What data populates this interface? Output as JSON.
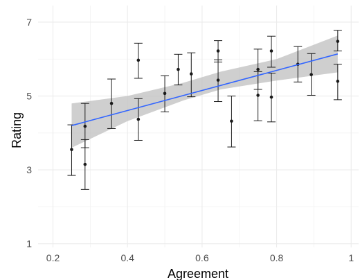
{
  "chart_data": {
    "type": "scatter",
    "title": "",
    "xlabel": "Agreement",
    "ylabel": "Rating",
    "xlim": [
      0.16,
      1.02
    ],
    "ylim": [
      0.9,
      7.45
    ],
    "x_ticks": [
      0.2,
      0.4,
      0.6,
      0.8,
      1.0
    ],
    "x_tick_labels": [
      "0.2",
      "0.4",
      "0.6",
      "0.8",
      "1"
    ],
    "y_ticks": [
      1,
      3,
      5,
      7
    ],
    "y_tick_labels": [
      "1",
      "3",
      "5",
      "7"
    ],
    "grid": true,
    "series": [
      {
        "marker": "point-with-errorbar",
        "points": [
          {
            "x": 0.25,
            "y": 3.55,
            "lo": 2.85,
            "hi": 4.22
          },
          {
            "x": 0.286,
            "y": 4.18,
            "lo": 3.6,
            "hi": 4.8
          },
          {
            "x": 0.286,
            "y": 3.15,
            "lo": 2.47,
            "hi": 3.82
          },
          {
            "x": 0.357,
            "y": 4.8,
            "lo": 4.12,
            "hi": 5.46
          },
          {
            "x": 0.429,
            "y": 5.97,
            "lo": 5.48,
            "hi": 6.43
          },
          {
            "x": 0.429,
            "y": 4.37,
            "lo": 3.8,
            "hi": 4.93
          },
          {
            "x": 0.5,
            "y": 5.07,
            "lo": 4.57,
            "hi": 5.55
          },
          {
            "x": 0.536,
            "y": 5.72,
            "lo": 5.3,
            "hi": 6.13
          },
          {
            "x": 0.571,
            "y": 5.6,
            "lo": 4.98,
            "hi": 6.17
          },
          {
            "x": 0.643,
            "y": 6.22,
            "lo": 5.92,
            "hi": 6.5
          },
          {
            "x": 0.643,
            "y": 5.43,
            "lo": 4.85,
            "hi": 5.98
          },
          {
            "x": 0.679,
            "y": 4.32,
            "lo": 3.62,
            "hi": 5.0
          },
          {
            "x": 0.75,
            "y": 5.72,
            "lo": 5.18,
            "hi": 6.27
          },
          {
            "x": 0.75,
            "y": 5.02,
            "lo": 4.33,
            "hi": 5.66
          },
          {
            "x": 0.786,
            "y": 6.22,
            "lo": 5.78,
            "hi": 6.62
          },
          {
            "x": 0.786,
            "y": 4.97,
            "lo": 4.3,
            "hi": 5.62
          },
          {
            "x": 0.857,
            "y": 5.86,
            "lo": 5.38,
            "hi": 6.34
          },
          {
            "x": 0.893,
            "y": 5.58,
            "lo": 5.02,
            "hi": 6.15
          },
          {
            "x": 0.964,
            "y": 6.48,
            "lo": 6.22,
            "hi": 6.78
          },
          {
            "x": 0.964,
            "y": 5.4,
            "lo": 4.9,
            "hi": 5.86
          }
        ],
        "color": "#1a1a1a"
      }
    ],
    "fit": {
      "type": "linear",
      "x0": 0.25,
      "y0": 4.2,
      "x1": 0.964,
      "y1": 6.14,
      "color": "#3366ff",
      "band_color": "#bfbfbf",
      "band": [
        {
          "x": 0.25,
          "lo": 3.6,
          "hi": 4.8
        },
        {
          "x": 0.4,
          "lo": 4.32,
          "hi": 5.0
        },
        {
          "x": 0.55,
          "lo": 4.88,
          "hi": 5.36
        },
        {
          "x": 0.65,
          "lo": 5.18,
          "hi": 5.66
        },
        {
          "x": 0.8,
          "lo": 5.42,
          "hi": 6.0
        },
        {
          "x": 0.964,
          "lo": 5.64,
          "hi": 6.64
        }
      ]
    }
  }
}
